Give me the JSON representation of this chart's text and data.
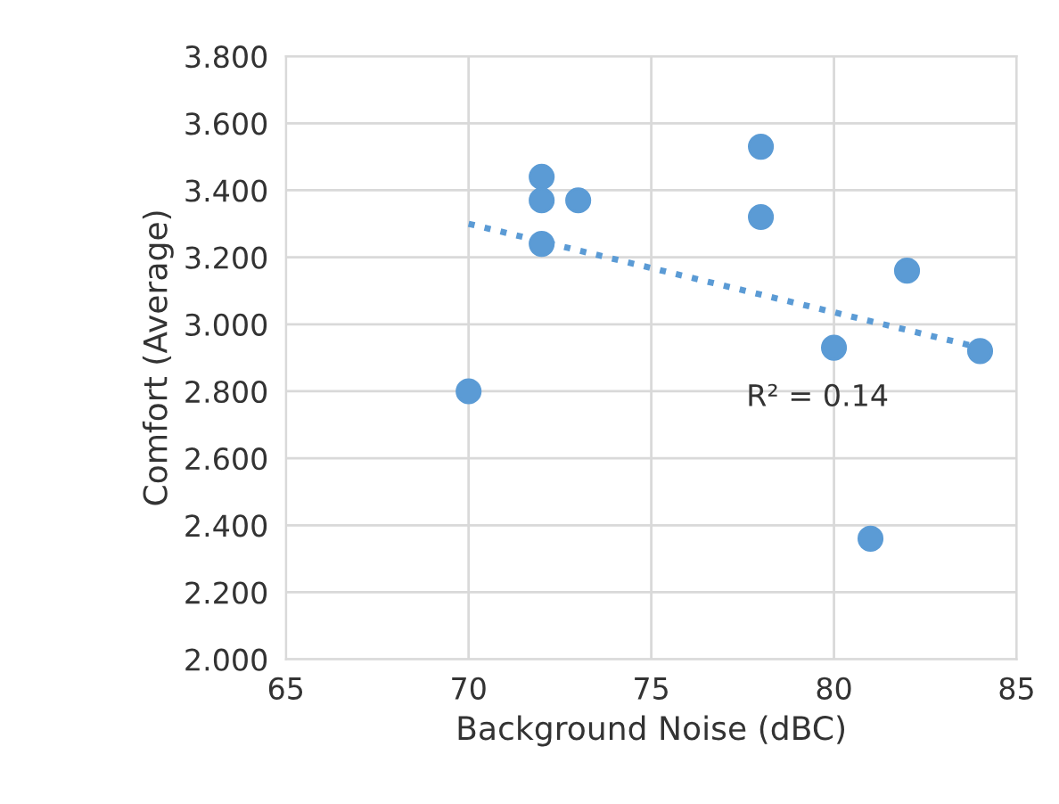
{
  "chart_data": {
    "type": "scatter",
    "xlabel": "Background Noise (dBC)",
    "ylabel": "Comfort (Average)",
    "x": [
      70,
      72,
      72,
      72,
      73,
      78,
      78,
      80,
      81,
      82,
      84
    ],
    "series": [
      {
        "color": "#5b9bd5",
        "values": [
          2.8,
          3.44,
          3.37,
          3.24,
          3.37,
          3.53,
          3.32,
          2.93,
          2.36,
          3.16,
          2.92
        ],
        "marker": "circle"
      },
      {
        "type": "line",
        "color": "#5b9bd5",
        "x": [
          70,
          84
        ],
        "values": [
          3.3,
          2.93
        ],
        "line_style": "dotted"
      }
    ],
    "annotations": [
      "R² = 0.14"
    ],
    "xlim": [
      65,
      85
    ],
    "xticks": [
      65,
      70,
      75,
      80,
      85
    ],
    "ylim": [
      2.0,
      3.8
    ],
    "yticks": [
      {
        "value": 2.0,
        "label": "2.000"
      },
      {
        "value": 2.2,
        "label": "2.200"
      },
      {
        "value": 2.4,
        "label": "2.400"
      },
      {
        "value": 2.6,
        "label": "2.600"
      },
      {
        "value": 2.8,
        "label": "2.800"
      },
      {
        "value": 3.0,
        "label": "3.000"
      },
      {
        "value": 3.2,
        "label": "3.200"
      },
      {
        "value": 3.4,
        "label": "3.400"
      },
      {
        "value": 3.6,
        "label": "3.600"
      },
      {
        "value": 3.8,
        "label": "3.800"
      }
    ],
    "grid": true,
    "legend": false
  }
}
